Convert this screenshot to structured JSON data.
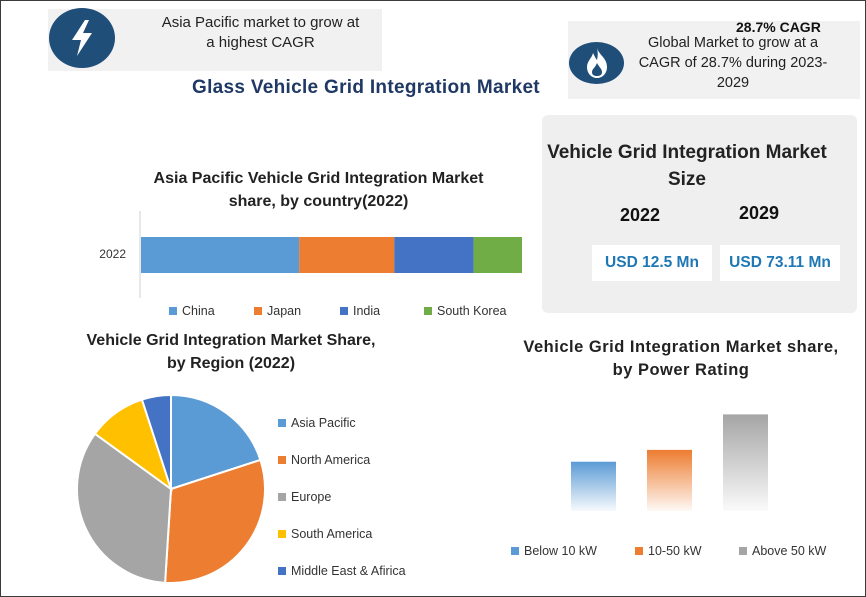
{
  "callouts": {
    "left_text": "Asia Pacific market to grow at a highest CAGR",
    "right_head": "28.7% CAGR",
    "right_text": "Global Market to grow at a CAGR of 28.7% during 2023-2029"
  },
  "icons": {
    "left": "lightning-bolt-icon",
    "right": "flame-icon"
  },
  "title": "Glass Vehicle Grid Integration Market",
  "market_size": {
    "title": "Vehicle Grid Integration Market Size",
    "year_a": "2022",
    "year_b": "2029",
    "value_a": "USD 12.5 Mn",
    "value_b": "USD 73.11 Mn"
  },
  "colors": {
    "blue": "#5b9bd5",
    "orange": "#ed7d31",
    "gray": "#a5a5a5",
    "yellow": "#ffc000",
    "darkblue": "#4472c4",
    "green": "#70ad47",
    "navy": "#1f4e79",
    "title": "#1f3864"
  },
  "chart_data": [
    {
      "type": "bar",
      "orientation": "horizontal-stacked-100",
      "title": "Asia Pacific Vehicle Grid Integration Market share, by country(2022)",
      "categories": [
        "2022"
      ],
      "series": [
        {
          "name": "China",
          "values": [
            41.5
          ],
          "color": "#5b9bd5"
        },
        {
          "name": "Japan",
          "values": [
            25.0
          ],
          "color": "#ed7d31"
        },
        {
          "name": "India",
          "values": [
            20.8
          ],
          "color": "#4472c4"
        },
        {
          "name": "South Korea",
          "values": [
            12.7
          ],
          "color": "#70ad47"
        }
      ],
      "legend": "bottom"
    },
    {
      "type": "pie",
      "title": "Vehicle Grid Integration Market Share, by Region (2022)",
      "labels": [
        "Asia Pacific",
        "North America",
        "Europe",
        "South America",
        "Middle East & Afirica"
      ],
      "values": [
        20,
        31,
        34,
        10,
        5
      ],
      "colors": [
        "#5b9bd5",
        "#ed7d31",
        "#a5a5a5",
        "#ffc000",
        "#4472c4"
      ],
      "legend": "right"
    },
    {
      "type": "bar",
      "title": "Vehicle Grid Integration Market share, by Power Rating",
      "categories": [
        "Below 10 kW",
        "10-50 kW",
        "Above 50 kW"
      ],
      "values": [
        25,
        31,
        49
      ],
      "colors": [
        "#5b9bd5",
        "#ed7d31",
        "#a5a5a5"
      ],
      "legend": "bottom"
    }
  ]
}
